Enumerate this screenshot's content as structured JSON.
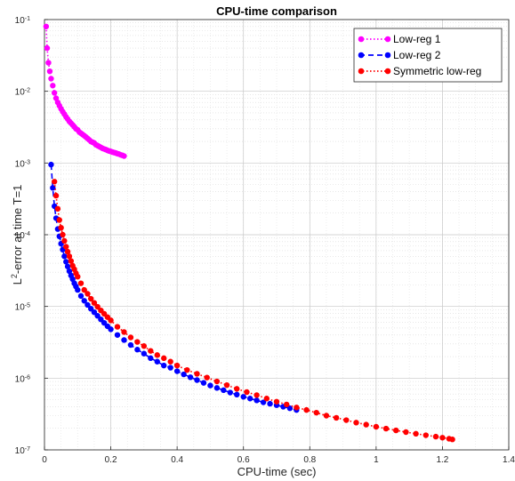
{
  "chart_data": {
    "type": "scatter",
    "title": "CPU-time comparison",
    "xlabel": "CPU-time (sec)",
    "ylabel": {
      "main": "L",
      "sup": "2",
      "rest": "-error at time T=1"
    },
    "xlim": [
      0,
      1.4
    ],
    "ylim": [
      1e-07,
      0.1
    ],
    "yscale": "log",
    "grid": true,
    "legend_position": "top-right",
    "xticks": [
      0,
      0.2,
      0.4,
      0.6,
      0.8,
      1,
      1.2,
      1.4
    ],
    "xtick_labels": [
      "0",
      "0.2",
      "0.4",
      "0.6",
      "0.8",
      "1",
      "1.2",
      "1.4"
    ],
    "yticks": [
      {
        "exp": -7,
        "base": "10",
        "sup": "-7"
      },
      {
        "exp": -6,
        "base": "10",
        "sup": "-6"
      },
      {
        "exp": -5,
        "base": "10",
        "sup": "-5"
      },
      {
        "exp": -4,
        "base": "10",
        "sup": "-4"
      },
      {
        "exp": -3,
        "base": "10",
        "sup": "-3"
      },
      {
        "exp": -2,
        "base": "10",
        "sup": "-2"
      },
      {
        "exp": -1,
        "base": "10",
        "sup": "-1"
      }
    ],
    "series": [
      {
        "name": "Low-reg 1",
        "color": "#ff00ff",
        "line_style": "dotted",
        "marker": "circle",
        "points": [
          [
            0.005,
            0.08
          ],
          [
            0.008,
            0.04
          ],
          [
            0.012,
            0.025
          ],
          [
            0.016,
            0.019
          ],
          [
            0.02,
            0.015
          ],
          [
            0.025,
            0.012
          ],
          [
            0.03,
            0.0095
          ],
          [
            0.035,
            0.008
          ],
          [
            0.04,
            0.007
          ],
          [
            0.045,
            0.0063
          ],
          [
            0.05,
            0.0057
          ],
          [
            0.055,
            0.0052
          ],
          [
            0.06,
            0.0048
          ],
          [
            0.065,
            0.0044
          ],
          [
            0.07,
            0.0041
          ],
          [
            0.075,
            0.0038
          ],
          [
            0.08,
            0.0036
          ],
          [
            0.085,
            0.0034
          ],
          [
            0.09,
            0.0032
          ],
          [
            0.095,
            0.003
          ],
          [
            0.1,
            0.0029
          ],
          [
            0.105,
            0.0027
          ],
          [
            0.11,
            0.0026
          ],
          [
            0.115,
            0.0025
          ],
          [
            0.12,
            0.0024
          ],
          [
            0.125,
            0.0023
          ],
          [
            0.13,
            0.0022
          ],
          [
            0.135,
            0.0021
          ],
          [
            0.14,
            0.002
          ],
          [
            0.145,
            0.00195
          ],
          [
            0.15,
            0.0019
          ],
          [
            0.155,
            0.0018
          ],
          [
            0.16,
            0.00175
          ],
          [
            0.165,
            0.0017
          ],
          [
            0.17,
            0.00165
          ],
          [
            0.175,
            0.0016
          ],
          [
            0.18,
            0.00157
          ],
          [
            0.185,
            0.00154
          ],
          [
            0.19,
            0.0015
          ],
          [
            0.195,
            0.00147
          ],
          [
            0.2,
            0.00145
          ],
          [
            0.205,
            0.00142
          ],
          [
            0.21,
            0.0014
          ],
          [
            0.215,
            0.00138
          ],
          [
            0.22,
            0.00135
          ],
          [
            0.225,
            0.00133
          ],
          [
            0.23,
            0.0013
          ],
          [
            0.235,
            0.00128
          ],
          [
            0.24,
            0.00125
          ]
        ]
      },
      {
        "name": "Low-reg 2",
        "color": "#0000ff",
        "line_style": "dashed",
        "marker": "circle",
        "points": [
          [
            0.02,
            0.00095
          ],
          [
            0.025,
            0.00045
          ],
          [
            0.03,
            0.00025
          ],
          [
            0.035,
            0.00017
          ],
          [
            0.04,
            0.00012
          ],
          [
            0.045,
            9.5e-05
          ],
          [
            0.05,
            7.5e-05
          ],
          [
            0.055,
            6.2e-05
          ],
          [
            0.06,
            5e-05
          ],
          [
            0.065,
            4.2e-05
          ],
          [
            0.07,
            3.6e-05
          ],
          [
            0.075,
            3.1e-05
          ],
          [
            0.08,
            2.7e-05
          ],
          [
            0.085,
            2.4e-05
          ],
          [
            0.09,
            2.1e-05
          ],
          [
            0.095,
            1.9e-05
          ],
          [
            0.1,
            1.7e-05
          ],
          [
            0.11,
            1.4e-05
          ],
          [
            0.12,
            1.2e-05
          ],
          [
            0.13,
            1.05e-05
          ],
          [
            0.14,
            9.3e-06
          ],
          [
            0.15,
            8.3e-06
          ],
          [
            0.16,
            7.4e-06
          ],
          [
            0.17,
            6.6e-06
          ],
          [
            0.18,
            5.9e-06
          ],
          [
            0.19,
            5.3e-06
          ],
          [
            0.2,
            4.8e-06
          ],
          [
            0.22,
            4e-06
          ],
          [
            0.24,
            3.4e-06
          ],
          [
            0.26,
            2.9e-06
          ],
          [
            0.28,
            2.5e-06
          ],
          [
            0.3,
            2.2e-06
          ],
          [
            0.32,
            1.9e-06
          ],
          [
            0.34,
            1.7e-06
          ],
          [
            0.36,
            1.5e-06
          ],
          [
            0.38,
            1.4e-06
          ],
          [
            0.4,
            1.25e-06
          ],
          [
            0.42,
            1.13e-06
          ],
          [
            0.44,
            1.03e-06
          ],
          [
            0.46,
            9.4e-07
          ],
          [
            0.48,
            8.6e-07
          ],
          [
            0.5,
            7.9e-07
          ],
          [
            0.52,
            7.3e-07
          ],
          [
            0.54,
            6.8e-07
          ],
          [
            0.56,
            6.3e-07
          ],
          [
            0.58,
            5.9e-07
          ],
          [
            0.6,
            5.5e-07
          ],
          [
            0.62,
            5.2e-07
          ],
          [
            0.64,
            4.9e-07
          ],
          [
            0.66,
            4.6e-07
          ],
          [
            0.68,
            4.4e-07
          ],
          [
            0.7,
            4.2e-07
          ],
          [
            0.72,
            4e-07
          ],
          [
            0.74,
            3.8e-07
          ],
          [
            0.76,
            3.6e-07
          ]
        ]
      },
      {
        "name": "Symmetric low-reg",
        "color": "#ff0000",
        "line_style": "dotted",
        "marker": "circle",
        "points": [
          [
            0.03,
            0.00055
          ],
          [
            0.035,
            0.00035
          ],
          [
            0.04,
            0.00023
          ],
          [
            0.045,
            0.00016
          ],
          [
            0.05,
            0.000125
          ],
          [
            0.055,
            0.0001
          ],
          [
            0.06,
            8.2e-05
          ],
          [
            0.065,
            6.8e-05
          ],
          [
            0.07,
            5.8e-05
          ],
          [
            0.075,
            5e-05
          ],
          [
            0.08,
            4.3e-05
          ],
          [
            0.085,
            3.7e-05
          ],
          [
            0.09,
            3.3e-05
          ],
          [
            0.095,
            2.9e-05
          ],
          [
            0.1,
            2.6e-05
          ],
          [
            0.11,
            2.1e-05
          ],
          [
            0.12,
            1.7e-05
          ],
          [
            0.13,
            1.5e-05
          ],
          [
            0.14,
            1.28e-05
          ],
          [
            0.15,
            1.12e-05
          ],
          [
            0.16,
            9.9e-06
          ],
          [
            0.17,
            8.8e-06
          ],
          [
            0.18,
            7.9e-06
          ],
          [
            0.19,
            7.1e-06
          ],
          [
            0.2,
            6.4e-06
          ],
          [
            0.22,
            5.2e-06
          ],
          [
            0.24,
            4.4e-06
          ],
          [
            0.26,
            3.7e-06
          ],
          [
            0.28,
            3.2e-06
          ],
          [
            0.3,
            2.8e-06
          ],
          [
            0.32,
            2.4e-06
          ],
          [
            0.34,
            2.1e-06
          ],
          [
            0.36,
            1.9e-06
          ],
          [
            0.38,
            1.7e-06
          ],
          [
            0.4,
            1.5e-06
          ],
          [
            0.43,
            1.3e-06
          ],
          [
            0.46,
            1.15e-06
          ],
          [
            0.49,
            1.02e-06
          ],
          [
            0.52,
            9e-07
          ],
          [
            0.55,
            8e-07
          ],
          [
            0.58,
            7.1e-07
          ],
          [
            0.61,
            6.4e-07
          ],
          [
            0.64,
            5.8e-07
          ],
          [
            0.67,
            5.2e-07
          ],
          [
            0.7,
            4.7e-07
          ],
          [
            0.73,
            4.3e-07
          ],
          [
            0.76,
            3.9e-07
          ],
          [
            0.79,
            3.6e-07
          ],
          [
            0.82,
            3.3e-07
          ],
          [
            0.85,
            3e-07
          ],
          [
            0.88,
            2.8e-07
          ],
          [
            0.91,
            2.6e-07
          ],
          [
            0.94,
            2.4e-07
          ],
          [
            0.97,
            2.25e-07
          ],
          [
            1.0,
            2.1e-07
          ],
          [
            1.03,
            1.98e-07
          ],
          [
            1.06,
            1.87e-07
          ],
          [
            1.09,
            1.77e-07
          ],
          [
            1.12,
            1.68e-07
          ],
          [
            1.15,
            1.6e-07
          ],
          [
            1.18,
            1.53e-07
          ],
          [
            1.2,
            1.48e-07
          ],
          [
            1.22,
            1.43e-07
          ],
          [
            1.23,
            1.4e-07
          ]
        ]
      }
    ]
  }
}
